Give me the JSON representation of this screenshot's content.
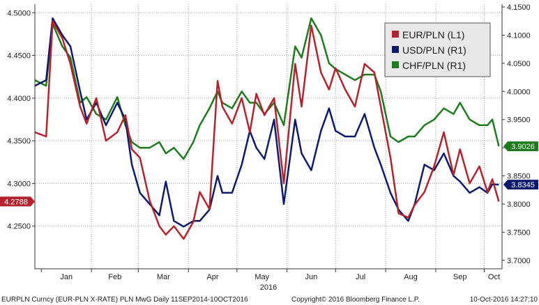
{
  "colors": {
    "eur": "#b5222d",
    "usd": "#0d1a6b",
    "chf": "#1d7a1d",
    "grid": "#9a9a9a",
    "axis": "#333333",
    "legend_bg": "#e8e8e8"
  },
  "chart_data": {
    "type": "line",
    "xlabel": "2016",
    "x_tick_labels": [
      "Jan",
      "Feb",
      "Mar",
      "Apr",
      "May",
      "Jun",
      "Jul",
      "Aug",
      "Sep",
      "Oct"
    ],
    "x_range": [
      "2015-12-28",
      "2016-10-12"
    ],
    "left_axis": {
      "ylim": [
        4.2,
        4.51
      ],
      "ticks": [
        4.25,
        4.3,
        4.35,
        4.4,
        4.45,
        4.5
      ],
      "tick_labels": [
        "4.2500",
        "4.3000",
        "4.3500",
        "4.4000",
        "4.4500",
        "4.5000"
      ]
    },
    "right_axis": {
      "ylim": [
        3.685,
        4.155
      ],
      "ticks": [
        3.7,
        3.75,
        3.8,
        3.85,
        3.9,
        3.95,
        4.0,
        4.05,
        4.1,
        4.15
      ],
      "tick_labels": [
        "3.7000",
        "3.7500",
        "3.8000",
        "3.8500",
        "3.9000",
        "3.9500",
        "4.0000",
        "4.0500",
        "4.1000",
        "4.1500"
      ]
    },
    "grid": true,
    "legend_position": "top-right",
    "series": [
      {
        "name": "EUR/PLN (L1)",
        "axis": "left",
        "color_key": "eur",
        "x": [
          "2015-12-28",
          "2016-01-04",
          "2016-01-08",
          "2016-01-14",
          "2016-01-19",
          "2016-01-25",
          "2016-01-29",
          "2016-02-04",
          "2016-02-10",
          "2016-02-17",
          "2016-02-22",
          "2016-02-26",
          "2016-03-02",
          "2016-03-08",
          "2016-03-14",
          "2016-03-18",
          "2016-03-23",
          "2016-03-29",
          "2016-04-04",
          "2016-04-08",
          "2016-04-14",
          "2016-04-19",
          "2016-04-22",
          "2016-04-28",
          "2016-05-04",
          "2016-05-09",
          "2016-05-13",
          "2016-05-18",
          "2016-05-24",
          "2016-05-30",
          "2016-06-06",
          "2016-06-10",
          "2016-06-16",
          "2016-06-22",
          "2016-06-27",
          "2016-07-01",
          "2016-07-07",
          "2016-07-13",
          "2016-07-19",
          "2016-07-25",
          "2016-07-29",
          "2016-08-04",
          "2016-08-09",
          "2016-08-15",
          "2016-08-19",
          "2016-08-25",
          "2016-08-31",
          "2016-09-06",
          "2016-09-12",
          "2016-09-16",
          "2016-09-22",
          "2016-09-28",
          "2016-10-03",
          "2016-10-06",
          "2016-10-10"
        ],
        "values": [
          4.36,
          4.355,
          4.49,
          4.47,
          4.44,
          4.39,
          4.37,
          4.4,
          4.35,
          4.36,
          4.38,
          4.34,
          4.33,
          4.28,
          4.25,
          4.24,
          4.25,
          4.235,
          4.255,
          4.29,
          4.27,
          4.42,
          4.39,
          4.37,
          4.4,
          4.36,
          4.405,
          4.38,
          4.4,
          4.3,
          4.44,
          4.39,
          4.485,
          4.43,
          4.41,
          4.435,
          4.41,
          4.39,
          4.44,
          4.43,
          4.39,
          4.33,
          4.265,
          4.26,
          4.275,
          4.29,
          4.32,
          4.36,
          4.31,
          4.34,
          4.3,
          4.32,
          4.29,
          4.305,
          4.2788
        ]
      },
      {
        "name": "USD/PLN (R1)",
        "axis": "right",
        "color_key": "usd",
        "x": [
          "2015-12-28",
          "2016-01-04",
          "2016-01-08",
          "2016-01-14",
          "2016-01-19",
          "2016-01-25",
          "2016-01-29",
          "2016-02-04",
          "2016-02-10",
          "2016-02-17",
          "2016-02-22",
          "2016-02-26",
          "2016-03-02",
          "2016-03-08",
          "2016-03-14",
          "2016-03-18",
          "2016-03-23",
          "2016-03-29",
          "2016-04-04",
          "2016-04-08",
          "2016-04-14",
          "2016-04-19",
          "2016-04-22",
          "2016-04-28",
          "2016-05-04",
          "2016-05-09",
          "2016-05-13",
          "2016-05-18",
          "2016-05-24",
          "2016-05-30",
          "2016-06-06",
          "2016-06-10",
          "2016-06-16",
          "2016-06-22",
          "2016-06-27",
          "2016-07-01",
          "2016-07-07",
          "2016-07-13",
          "2016-07-19",
          "2016-07-25",
          "2016-07-29",
          "2016-08-04",
          "2016-08-09",
          "2016-08-15",
          "2016-08-19",
          "2016-08-25",
          "2016-08-31",
          "2016-09-06",
          "2016-09-12",
          "2016-09-16",
          "2016-09-22",
          "2016-09-28",
          "2016-10-03",
          "2016-10-06",
          "2016-10-10"
        ],
        "values": [
          4.01,
          4.02,
          4.13,
          4.1,
          4.08,
          4.0,
          3.95,
          3.98,
          3.94,
          3.98,
          3.95,
          3.87,
          3.82,
          3.8,
          3.78,
          3.84,
          3.77,
          3.76,
          3.77,
          3.77,
          3.79,
          3.85,
          3.82,
          3.82,
          3.87,
          3.93,
          3.9,
          3.88,
          3.95,
          3.8,
          3.95,
          3.89,
          3.86,
          3.93,
          3.97,
          3.93,
          3.92,
          3.92,
          3.96,
          3.9,
          3.87,
          3.82,
          3.79,
          3.77,
          3.8,
          3.87,
          3.86,
          3.89,
          3.85,
          3.84,
          3.82,
          3.83,
          3.82,
          3.835,
          3.8345
        ]
      },
      {
        "name": "CHF/PLN (R1)",
        "axis": "right",
        "color_key": "chf",
        "x": [
          "2015-12-28",
          "2016-01-04",
          "2016-01-08",
          "2016-01-14",
          "2016-01-19",
          "2016-01-25",
          "2016-01-29",
          "2016-02-04",
          "2016-02-10",
          "2016-02-17",
          "2016-02-22",
          "2016-02-26",
          "2016-03-02",
          "2016-03-08",
          "2016-03-14",
          "2016-03-18",
          "2016-03-23",
          "2016-03-29",
          "2016-04-04",
          "2016-04-08",
          "2016-04-14",
          "2016-04-19",
          "2016-04-22",
          "2016-04-28",
          "2016-05-04",
          "2016-05-09",
          "2016-05-13",
          "2016-05-18",
          "2016-05-24",
          "2016-05-30",
          "2016-06-06",
          "2016-06-10",
          "2016-06-16",
          "2016-06-22",
          "2016-06-27",
          "2016-07-01",
          "2016-07-07",
          "2016-07-13",
          "2016-07-19",
          "2016-07-25",
          "2016-07-29",
          "2016-08-04",
          "2016-08-09",
          "2016-08-15",
          "2016-08-19",
          "2016-08-25",
          "2016-08-31",
          "2016-09-06",
          "2016-09-12",
          "2016-09-16",
          "2016-09-22",
          "2016-09-28",
          "2016-10-03",
          "2016-10-06",
          "2016-10-10"
        ],
        "values": [
          4.02,
          4.01,
          4.12,
          4.08,
          4.06,
          3.98,
          3.99,
          3.96,
          3.95,
          3.99,
          3.94,
          3.91,
          3.9,
          3.9,
          3.91,
          3.89,
          3.9,
          3.88,
          3.91,
          3.94,
          3.97,
          4.0,
          3.98,
          3.97,
          4.0,
          3.98,
          3.98,
          3.96,
          3.98,
          3.94,
          4.08,
          4.06,
          4.13,
          4.1,
          4.05,
          4.04,
          4.03,
          4.02,
          4.03,
          4.03,
          4.0,
          3.92,
          3.91,
          3.92,
          3.92,
          3.94,
          3.95,
          3.97,
          3.96,
          3.98,
          3.95,
          3.94,
          3.94,
          3.95,
          3.9026
        ]
      }
    ],
    "last_value_labels": {
      "eur": "4.2788",
      "usd": "3.8345",
      "chf": "3.9026"
    },
    "footer": {
      "left": "EURPLN Curncy (EUR-PLN X-RATE) PLN MwG  Daily 11SEP2014-10OCT2016",
      "center": "Copyright© 2016 Bloomberg Finance L.P.",
      "right": "10-Oct-2016 14:27:10"
    }
  }
}
